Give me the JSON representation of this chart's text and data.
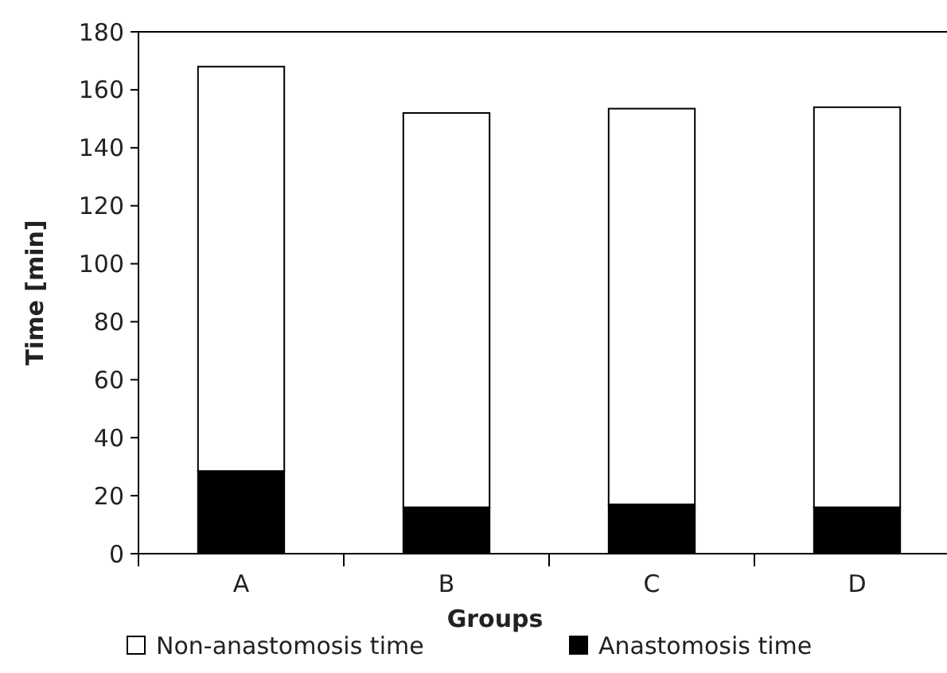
{
  "chart_data": {
    "type": "bar",
    "stacked": true,
    "xlabel": "Groups",
    "ylabel": "Time [min]",
    "categories": [
      "A",
      "B",
      "C",
      "D"
    ],
    "series": [
      {
        "name": "Anastomosis time",
        "color": "#000000",
        "values": [
          28.5,
          16,
          17,
          16
        ]
      },
      {
        "name": "Non-anastomosis time",
        "color": "#ffffff",
        "values": [
          139.5,
          136,
          136.5,
          138
        ]
      }
    ],
    "ylim": [
      0,
      180
    ],
    "yticks": [
      0,
      20,
      40,
      60,
      80,
      100,
      120,
      140,
      160,
      180
    ],
    "legend": "bottom",
    "grid": false
  }
}
